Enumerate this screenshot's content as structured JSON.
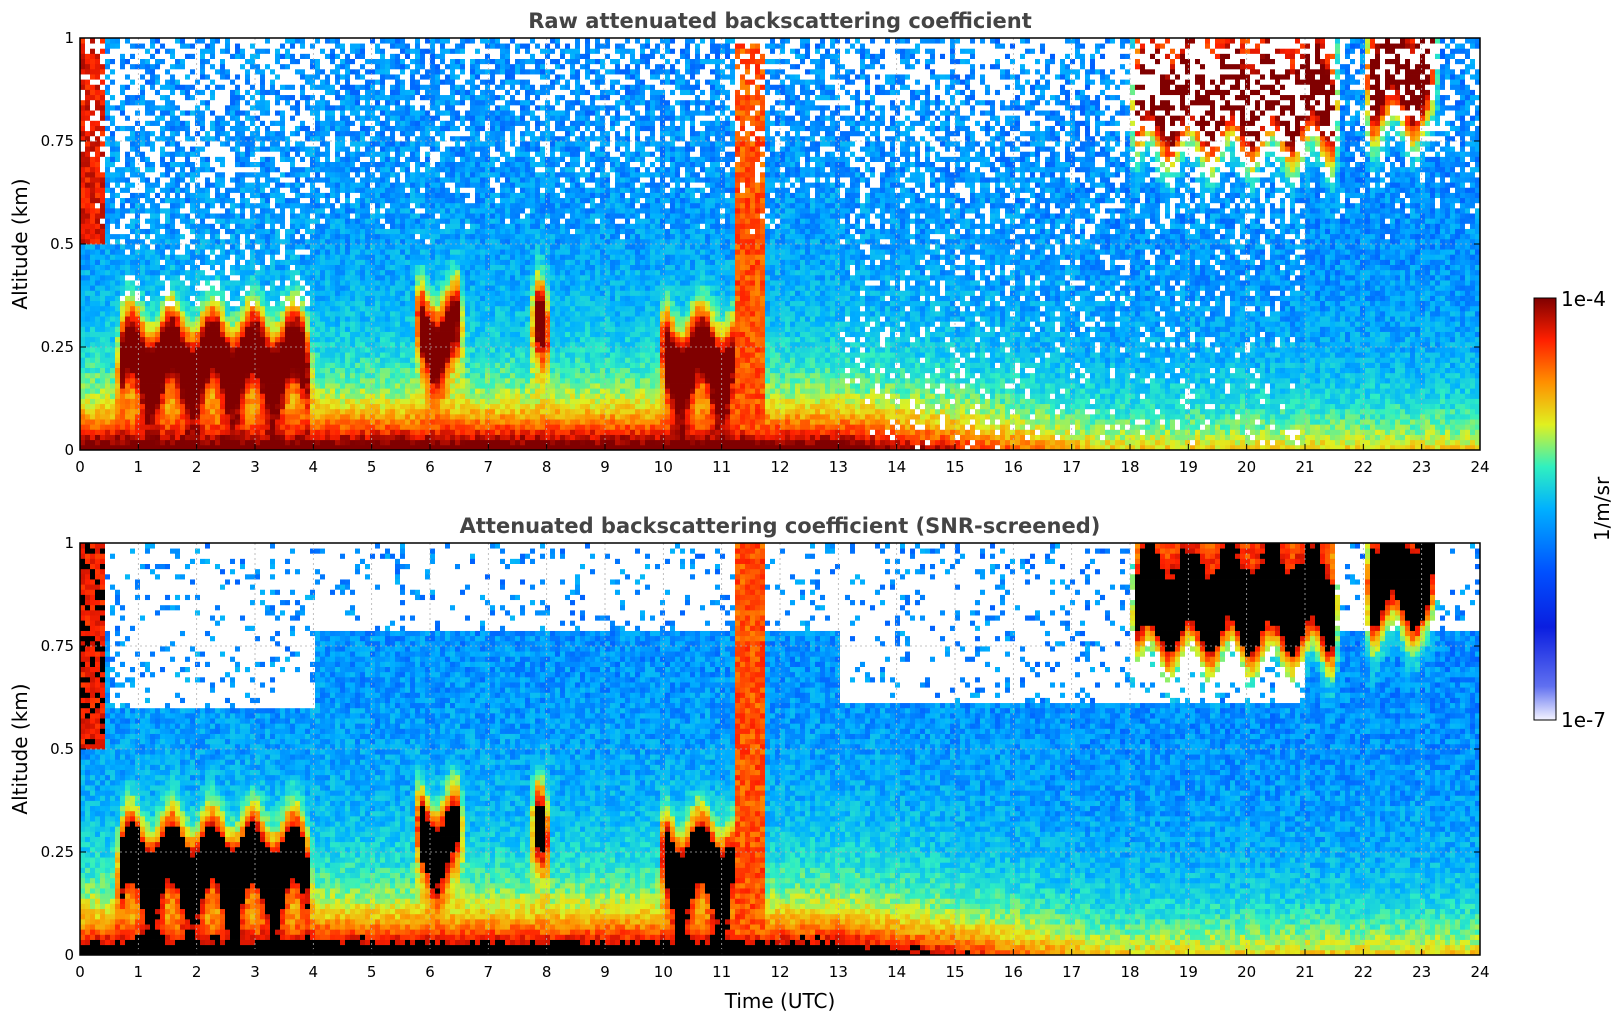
{
  "chart_data": [
    {
      "type": "heatmap",
      "title": "Raw attenuated backscattering coefficient",
      "xlabel": "",
      "ylabel": "Altitude (km)",
      "xlim": [
        0,
        24
      ],
      "ylim": [
        0,
        1
      ],
      "xticks": [
        "0",
        "1",
        "2",
        "3",
        "4",
        "5",
        "6",
        "7",
        "8",
        "9",
        "10",
        "11",
        "12",
        "13",
        "14",
        "15",
        "16",
        "17",
        "18",
        "19",
        "20",
        "21",
        "22",
        "23",
        "24"
      ],
      "yticks": [
        "0",
        "0.25",
        "0.5",
        "0.75",
        "1"
      ],
      "grid": true,
      "screened": false
    },
    {
      "type": "heatmap",
      "title": "Attenuated backscattering coefficient (SNR-screened)",
      "xlabel": "Time (UTC)",
      "ylabel": "Altitude (km)",
      "xlim": [
        0,
        24
      ],
      "ylim": [
        0,
        1
      ],
      "xticks": [
        "0",
        "1",
        "2",
        "3",
        "4",
        "5",
        "6",
        "7",
        "8",
        "9",
        "10",
        "11",
        "12",
        "13",
        "14",
        "15",
        "16",
        "17",
        "18",
        "19",
        "20",
        "21",
        "22",
        "23",
        "24"
      ],
      "yticks": [
        "0",
        "0.25",
        "0.5",
        "0.75",
        "1"
      ],
      "grid": true,
      "screened": true
    }
  ],
  "colorbar": {
    "label": "1/m/sr",
    "max_label": "1e-4",
    "min_label": "1e-7",
    "scale": "log",
    "colormap": "jet with white low end",
    "colors": [
      "#f4f4ff",
      "#0a1ee0",
      "#0050ff",
      "#00b0ff",
      "#30f0c0",
      "#e0f020",
      "#ff9000",
      "#ff2000",
      "#800000"
    ]
  },
  "features": {
    "aerosol_layer_top_km": 0.05,
    "cloud_layers": [
      {
        "t_start": 0.6,
        "t_end": 4.0,
        "alt_km": 0.22
      },
      {
        "t_start": 5.7,
        "t_end": 6.6,
        "alt_km": 0.28
      },
      {
        "t_start": 7.7,
        "t_end": 8.1,
        "alt_km": 0.28
      },
      {
        "t_start": 9.9,
        "t_end": 11.3,
        "alt_km": 0.22
      },
      {
        "t_start": 18.0,
        "t_end": 21.6,
        "alt_km": 0.82
      },
      {
        "t_start": 22.0,
        "t_end": 23.3,
        "alt_km": 0.88
      }
    ],
    "precip_column": {
      "t_start": 11.2,
      "t_end": 11.7
    }
  }
}
